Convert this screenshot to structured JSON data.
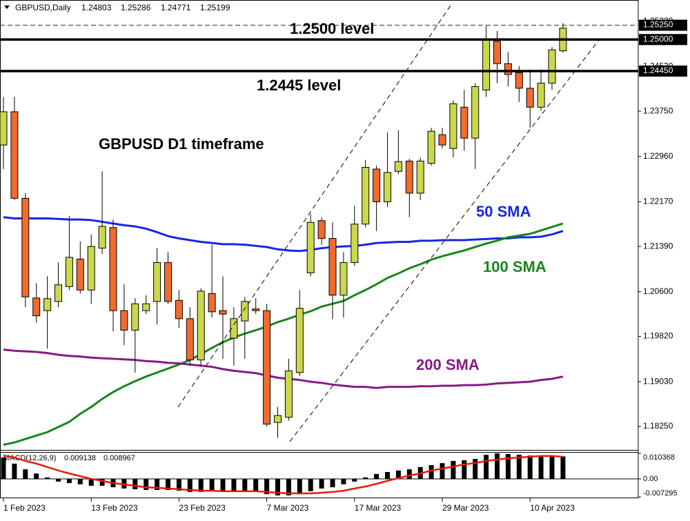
{
  "chart_data": [
    {
      "type": "candlestick",
      "title": "GBPUSD,Daily",
      "categories": [
        "1 Feb 2023",
        null,
        null,
        null,
        null,
        null,
        null,
        null,
        "13 Feb 2023",
        null,
        null,
        null,
        null,
        null,
        null,
        null,
        "23 Feb 2023",
        null,
        null,
        null,
        null,
        null,
        null,
        null,
        "7 Mar 2023",
        null,
        null,
        null,
        null,
        null,
        null,
        null,
        "17 Mar 2023",
        null,
        null,
        null,
        null,
        null,
        null,
        null,
        "29 Mar 2023",
        null,
        null,
        null,
        null,
        null,
        null,
        null,
        "10 Apr 2023",
        null,
        null,
        null
      ],
      "open": [
        1.2316,
        1.2374,
        1.2223,
        1.2049,
        1.2027,
        1.2043,
        1.2069,
        1.2117,
        1.2063,
        1.2136,
        1.2172,
        1.2027,
        1.1993,
        1.2027,
        1.2043,
        1.2111,
        1.2045,
        1.2013,
        1.1941,
        1.2057,
        1.2027,
        1.1979,
        1.2009,
        1.203,
        1.2027,
        1.1832,
        1.1841,
        1.1919,
        1.2093,
        1.2184,
        1.2153,
        1.2054,
        1.2111,
        1.2178,
        1.2274,
        1.2217,
        1.227,
        1.2288,
        1.2232,
        1.2284,
        1.2334,
        1.231,
        1.2382,
        1.2328,
        1.2412,
        1.2497,
        1.2458,
        1.2442,
        1.2415,
        1.2382,
        1.2424,
        1.24803
      ],
      "high": [
        1.24,
        1.24,
        1.2232,
        1.2075,
        1.2087,
        1.2111,
        1.2192,
        1.2148,
        1.216,
        1.227,
        1.2186,
        1.2073,
        1.2049,
        1.2054,
        1.2136,
        1.2129,
        1.2063,
        1.2033,
        1.2066,
        1.2142,
        1.2087,
        1.2033,
        1.2051,
        1.2049,
        1.2039,
        1.1859,
        1.1943,
        1.2063,
        1.2196,
        1.219,
        1.2181,
        1.2129,
        1.221,
        1.229,
        1.228,
        1.2338,
        1.2342,
        1.2292,
        1.2294,
        1.2346,
        1.2346,
        1.2394,
        1.2412,
        1.2424,
        1.2524,
        1.2515,
        1.2478,
        1.2454,
        1.2448,
        1.2448,
        1.2487,
        1.25286
      ],
      "low": [
        1.2274,
        1.222,
        1.2033,
        1.2006,
        1.1961,
        1.2033,
        1.2063,
        1.2057,
        1.2039,
        1.2126,
        1.1991,
        1.1967,
        1.1919,
        1.2021,
        1.2003,
        1.2039,
        1.1997,
        1.1931,
        1.1931,
        1.2015,
        1.1943,
        1.1931,
        1.1943,
        1.2021,
        1.1825,
        1.1805,
        1.1835,
        1.1913,
        1.2087,
        1.2142,
        1.2012,
        1.2015,
        1.2105,
        1.2172,
        1.2166,
        1.2208,
        1.2265,
        1.219,
        1.222,
        1.228,
        1.231,
        1.2294,
        1.2306,
        1.2274,
        1.24,
        1.2424,
        1.2418,
        1.2391,
        1.2346,
        1.2376,
        1.2412,
        1.24771
      ],
      "close": [
        1.2374,
        1.2223,
        1.2051,
        1.2018,
        1.2048,
        1.2072,
        1.212,
        1.2063,
        1.2139,
        1.2174,
        1.2027,
        1.1993,
        1.2039,
        1.2039,
        1.2111,
        1.2043,
        1.2013,
        1.1941,
        1.2061,
        1.2025,
        1.2021,
        1.2013,
        1.2043,
        1.2027,
        1.1829,
        1.1844,
        1.1922,
        1.2031,
        1.2181,
        1.2153,
        1.2054,
        1.2111,
        1.2178,
        1.2277,
        1.2217,
        1.2268,
        1.2287,
        1.2232,
        1.2288,
        1.234,
        1.2316,
        1.2388,
        1.2328,
        1.2418,
        1.25,
        1.2458,
        1.2439,
        1.2415,
        1.2382,
        1.2424,
        1.2482,
        1.25199
      ],
      "up_color": "#cbd84c",
      "down_color": "#f26a2e",
      "series": [
        {
          "name": "50 SMA",
          "color": "#1426e6",
          "values": [
            1.219,
            1.2188,
            1.2188,
            1.2188,
            1.2188,
            1.2187,
            1.2186,
            1.2186,
            1.2185,
            1.2182,
            1.2179,
            1.2176,
            1.2174,
            1.217,
            1.2164,
            1.2157,
            1.2153,
            1.215,
            1.2147,
            1.2145,
            1.2143,
            1.2143,
            1.2142,
            1.214,
            1.2138,
            1.2134,
            1.2132,
            1.2131,
            1.2133,
            1.2136,
            1.2138,
            1.2139,
            1.214,
            1.2142,
            1.2145,
            1.2146,
            1.2147,
            1.2147,
            1.2149,
            1.2149,
            1.215,
            1.215,
            1.215,
            1.2151,
            1.2152,
            1.2153,
            1.2153,
            1.2155,
            1.2155,
            1.2156,
            1.216,
            1.2166
          ]
        },
        {
          "name": "100 SMA",
          "color": "#16861a",
          "values": [
            1.1793,
            1.1797,
            1.1803,
            1.1809,
            1.1815,
            1.1824,
            1.1833,
            1.1847,
            1.1859,
            1.1873,
            1.1885,
            1.1895,
            1.1904,
            1.1912,
            1.1919,
            1.1926,
            1.1933,
            1.1941,
            1.1951,
            1.1962,
            1.1972,
            1.198,
            1.1987,
            1.1993,
            1.1999,
            1.2007,
            1.2013,
            1.202,
            1.2026,
            1.2034,
            1.2039,
            1.2044,
            1.2054,
            1.2063,
            1.2073,
            1.2084,
            1.2092,
            1.2101,
            1.2108,
            1.2116,
            1.2122,
            1.2127,
            1.2132,
            1.2138,
            1.2144,
            1.2149,
            1.2155,
            1.2158,
            1.2161,
            1.2167,
            1.2173,
            1.2179
          ]
        },
        {
          "name": "200 SMA",
          "color": "#861a86",
          "values": [
            1.1959,
            1.1957,
            1.1956,
            1.1955,
            1.1953,
            1.195,
            1.1948,
            1.1947,
            1.1945,
            1.1944,
            1.1943,
            1.1942,
            1.1941,
            1.1939,
            1.1938,
            1.1936,
            1.1935,
            1.1933,
            1.1931,
            1.1929,
            1.1925,
            1.1922,
            1.192,
            1.1918,
            1.1914,
            1.191,
            1.1908,
            1.1906,
            1.1903,
            1.1901,
            1.1898,
            1.1896,
            1.1894,
            1.1894,
            1.1892,
            1.1894,
            1.1894,
            1.1894,
            1.1895,
            1.1895,
            1.1896,
            1.1896,
            1.1897,
            1.1897,
            1.1898,
            1.19,
            1.1901,
            1.1902,
            1.1903,
            1.1906,
            1.1908,
            1.1912
          ]
        }
      ],
      "ylim": [
        1.1784,
        1.2569
      ],
      "yticks": [
        {
          "value": 1.1825,
          "label": "1.18250"
        },
        {
          "value": 1.1903,
          "label": "1.19030"
        },
        {
          "value": 1.1982,
          "label": "1.19820"
        },
        {
          "value": 1.206,
          "label": "1.20600"
        },
        {
          "value": 1.2139,
          "label": "1.21390"
        },
        {
          "value": 1.2217,
          "label": "1.22170"
        },
        {
          "value": 1.2296,
          "label": "1.22960"
        },
        {
          "value": 1.2375,
          "label": "1.23750"
        },
        {
          "value": 1.2453,
          "label": "1.24530"
        },
        {
          "value": 1.2532,
          "label": "1.25320"
        }
      ],
      "levels": [
        {
          "value": 1.25,
          "label": "1.25000",
          "text": "1.2500 level"
        },
        {
          "value": 1.2445,
          "label": "1.24450",
          "text": "1.2445 level"
        }
      ],
      "ask_line": {
        "value": 1.2525,
        "label": "1.25250"
      },
      "annotations": [
        "GBPUSD D1 timeframe"
      ]
    },
    {
      "type": "macd",
      "title": "MACD(12,26,9)",
      "histogram": [
        0.0087,
        0.0062,
        0.0039,
        0.0022,
        0.0006,
        -0.0011,
        -0.0017,
        -0.0022,
        -0.0028,
        -0.0028,
        -0.0034,
        -0.0039,
        -0.0042,
        -0.0045,
        -0.0045,
        -0.0045,
        -0.0048,
        -0.0053,
        -0.0053,
        -0.005,
        -0.005,
        -0.005,
        -0.005,
        -0.0053,
        -0.0062,
        -0.0067,
        -0.0067,
        -0.0062,
        -0.005,
        -0.0039,
        -0.0034,
        -0.0022,
        -0.0011,
        0.0006,
        0.002,
        0.0028,
        0.0034,
        0.0039,
        0.0048,
        0.0056,
        0.0064,
        0.0073,
        0.0076,
        0.0081,
        0.0098,
        0.010368,
        0.0101,
        0.0098,
        0.0095,
        0.0093,
        0.0093,
        0.009138
      ],
      "signal": [
        0.0095,
        0.0087,
        0.0073,
        0.0062,
        0.0048,
        0.0034,
        0.0022,
        0.0011,
        0,
        -0.0008,
        -0.0017,
        -0.0022,
        -0.0028,
        -0.0034,
        -0.0036,
        -0.0039,
        -0.0042,
        -0.0045,
        -0.0048,
        -0.0048,
        -0.005,
        -0.005,
        -0.005,
        -0.005,
        -0.0053,
        -0.0056,
        -0.0059,
        -0.0059,
        -0.0059,
        -0.0056,
        -0.0053,
        -0.0048,
        -0.0039,
        -0.0031,
        -0.002,
        -0.0008,
        0.0003,
        0.0014,
        0.0022,
        0.0034,
        0.0042,
        0.005,
        0.0059,
        0.0064,
        0.0073,
        0.0078,
        0.0084,
        0.0087,
        0.009,
        0.0093,
        0.0093,
        0.008967
      ],
      "histogram_color": "#000000",
      "signal_color": "#e8190c",
      "ylim": [
        -0.007295,
        0.010368
      ],
      "yticks": [
        0.010368,
        {
          "value": 0,
          "label": "0.00"
        },
        -0.007295
      ]
    }
  ]
}
